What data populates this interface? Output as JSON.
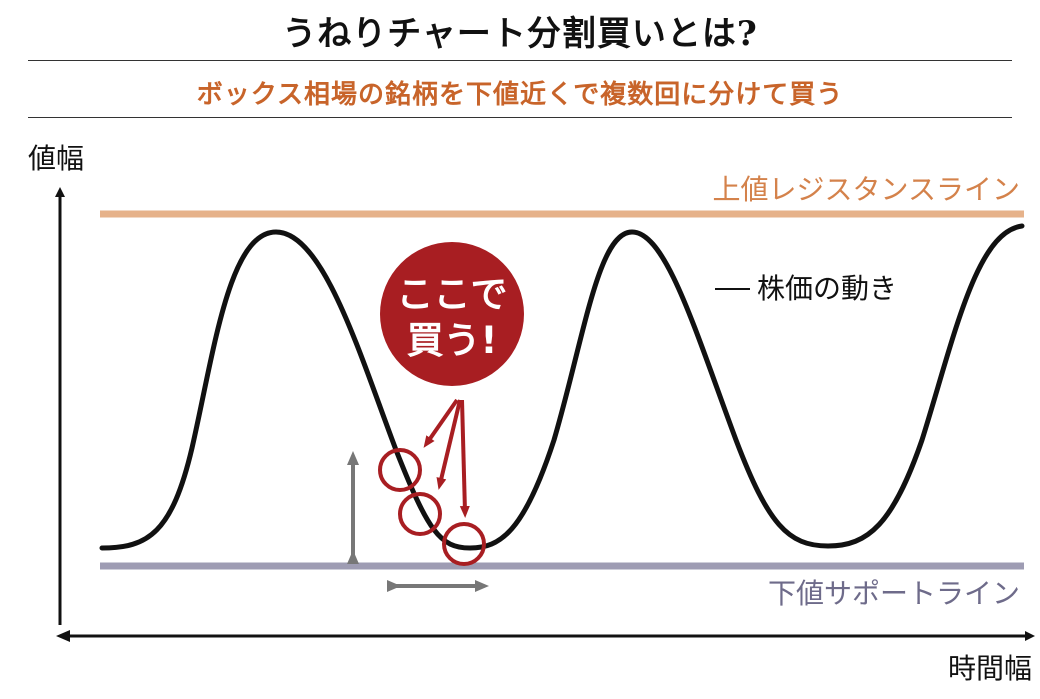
{
  "header": {
    "title": "うねりチャート分割買いとは?",
    "subtitle": "ボックス相場の銘柄を下値近くで複数回に分けて買う"
  },
  "diagram": {
    "y_axis_label": "値幅",
    "x_axis_label": "時間幅",
    "resistance_label": "上値レジスタンスライン",
    "support_label": "下値サポートライン",
    "price_label": "株価の動き",
    "callout": {
      "line1": "ここで",
      "line2": "買う!"
    },
    "colors": {
      "resistance": "#e6b28a",
      "resistance_text": "#d4824b",
      "support": "#9e9cb3",
      "support_text": "#6e6b8a",
      "price_curve": "#111111",
      "callout": "#a81e22",
      "gray_arrow": "#777777"
    }
  }
}
